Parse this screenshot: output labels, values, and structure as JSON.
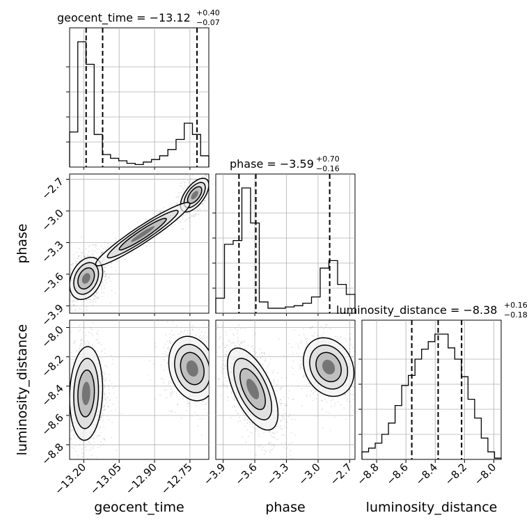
{
  "chart_data": {
    "type": "corner",
    "parameters": [
      "geocent_time",
      "phase",
      "luminosity_distance"
    ],
    "titles": [
      {
        "param": "geocent_time",
        "text": "geocent_time = −13.12",
        "plus": "+0.40",
        "minus": "−0.07"
      },
      {
        "param": "phase",
        "text": "phase = −3.59",
        "plus": "+0.70",
        "minus": "−0.16"
      },
      {
        "param": "luminosity_distance",
        "text": "luminosity_distance = −8.38",
        "plus": "+0.16",
        "minus": "−0.18"
      }
    ],
    "axis_labels": [
      "geocent_time",
      "phase",
      "luminosity_distance"
    ],
    "ranges": {
      "geocent_time": [
        -13.26,
        -12.67
      ],
      "phase": [
        -3.97,
        -2.65
      ],
      "luminosity_distance": [
        -8.9,
        -7.95
      ]
    },
    "ticks": {
      "geocent_time": {
        "values": [
          -13.2,
          -13.05,
          -12.9,
          -12.75
        ],
        "labels": [
          "−13.20",
          "−13.05",
          "−12.90",
          "−12.75"
        ]
      },
      "phase": {
        "values": [
          -3.9,
          -3.6,
          -3.3,
          -3.0,
          -2.7
        ],
        "labels": [
          "−3.9",
          "−3.6",
          "−3.3",
          "−3.0",
          "−2.7"
        ]
      },
      "luminosity_distance": {
        "values": [
          -8.8,
          -8.6,
          -8.4,
          -8.2,
          -8.0
        ],
        "labels": [
          "−8.8",
          "−8.6",
          "−8.4",
          "−8.2",
          "−8.0"
        ]
      }
    },
    "quantiles": {
      "geocent_time": [
        -13.19,
        -13.12,
        -12.72
      ],
      "phase": [
        -3.75,
        -3.59,
        -2.89
      ],
      "luminosity_distance": [
        -8.56,
        -8.38,
        -8.22
      ]
    },
    "histograms": {
      "geocent_time": [
        0.28,
        1.0,
        0.82,
        0.26,
        0.1,
        0.07,
        0.05,
        0.03,
        0.02,
        0.04,
        0.06,
        0.09,
        0.14,
        0.22,
        0.35,
        0.26,
        0.09
      ],
      "phase": [
        0.12,
        0.55,
        0.58,
        1.0,
        0.72,
        0.09,
        0.04,
        0.04,
        0.05,
        0.06,
        0.08,
        0.13,
        0.36,
        0.42,
        0.23,
        0.15
      ],
      "luminosity_distance": [
        0.06,
        0.09,
        0.13,
        0.2,
        0.29,
        0.43,
        0.59,
        0.67,
        0.8,
        0.88,
        0.94,
        1.0,
        1.0,
        0.89,
        0.8,
        0.66,
        0.48,
        0.33,
        0.17,
        0.06,
        0.01
      ]
    },
    "pairs": [
      {
        "x": "geocent_time",
        "y": "phase",
        "modes": [
          {
            "cx": -13.19,
            "cy": -3.64,
            "sx": 0.035,
            "sy": 0.1,
            "rho": 0.3,
            "n": 900
          },
          {
            "cx": -12.73,
            "cy": -2.85,
            "sx": 0.03,
            "sy": 0.08,
            "rho": 0.6,
            "n": 500
          },
          {
            "cx": -12.95,
            "cy": -3.22,
            "sx": 0.1,
            "sy": 0.15,
            "rho": 0.95,
            "n": 220
          }
        ]
      },
      {
        "x": "geocent_time",
        "y": "luminosity_distance",
        "modes": [
          {
            "cx": -13.19,
            "cy": -8.45,
            "sx": 0.035,
            "sy": 0.16,
            "rho": 0.1,
            "n": 1000
          },
          {
            "cx": -12.74,
            "cy": -8.28,
            "sx": 0.05,
            "sy": 0.11,
            "rho": -0.2,
            "n": 550
          }
        ]
      },
      {
        "x": "phase",
        "y": "luminosity_distance",
        "modes": [
          {
            "cx": -3.62,
            "cy": -8.42,
            "sx": 0.12,
            "sy": 0.14,
            "rho": -0.6,
            "n": 1000
          },
          {
            "cx": -2.9,
            "cy": -8.27,
            "sx": 0.12,
            "sy": 0.1,
            "rho": -0.2,
            "n": 550
          }
        ]
      }
    ],
    "grid": true,
    "colors": {
      "contour": "#000000",
      "quantile_line": "#000000",
      "grid": "#b0b0b0",
      "points": "#777777"
    }
  }
}
